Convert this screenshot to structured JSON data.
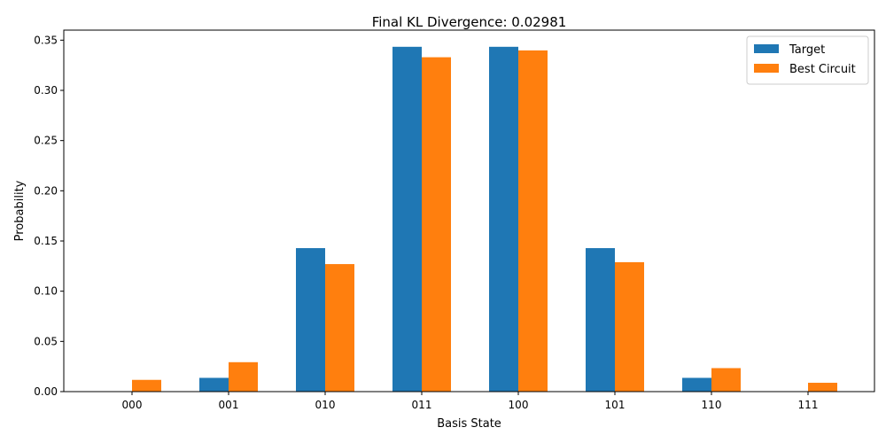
{
  "chart_data": {
    "type": "bar",
    "title": "Final KL Divergence: 0.02981",
    "xlabel": "Basis State",
    "ylabel": "Probability",
    "categories": [
      "000",
      "001",
      "010",
      "011",
      "100",
      "101",
      "110",
      "111"
    ],
    "ylim": [
      0,
      0.36
    ],
    "yticks": [
      "0.00",
      "0.05",
      "0.10",
      "0.15",
      "0.20",
      "0.25",
      "0.30",
      "0.35"
    ],
    "grid": false,
    "legend_position": "top-right",
    "series": [
      {
        "name": "Target",
        "color": "#1f77b4",
        "values": [
          0.0,
          0.0137,
          0.1429,
          0.3434,
          0.3434,
          0.1429,
          0.0137,
          0.0
        ]
      },
      {
        "name": "Best Circuit",
        "color": "#ff7f0e",
        "values": [
          0.0117,
          0.0293,
          0.127,
          0.333,
          0.3398,
          0.1289,
          0.0234,
          0.0088
        ]
      }
    ]
  }
}
